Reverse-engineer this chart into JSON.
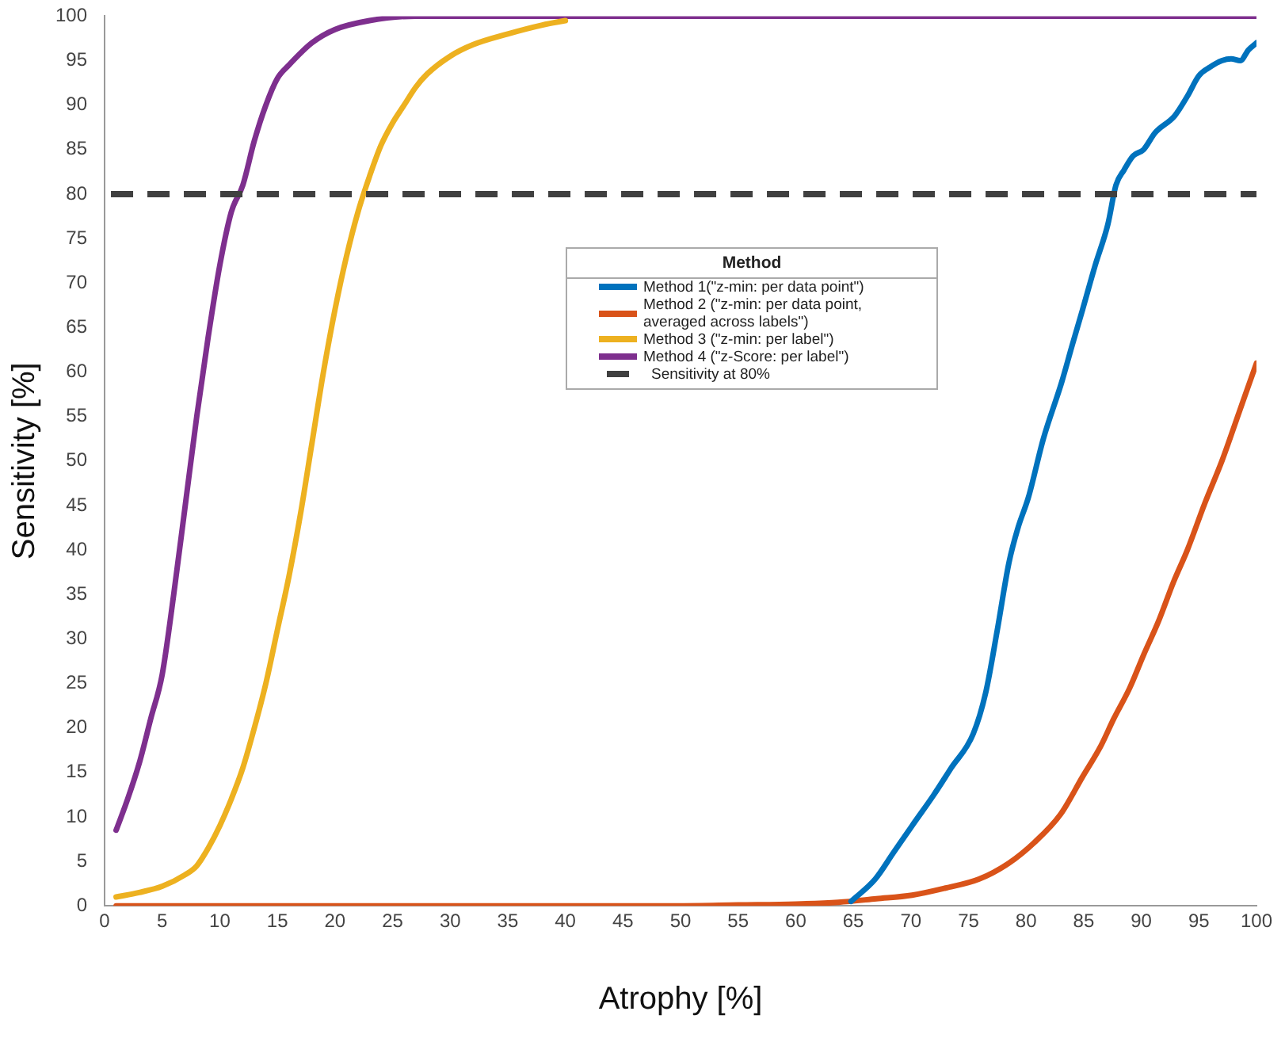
{
  "chart_data": {
    "type": "line",
    "xlabel": "Atrophy [%]",
    "ylabel": "Sensitivity [%]",
    "legend_title": "Method",
    "xlim": [
      0,
      100
    ],
    "ylim": [
      0,
      100
    ],
    "xticks": [
      0,
      5,
      10,
      15,
      20,
      25,
      30,
      35,
      40,
      45,
      50,
      55,
      60,
      65,
      70,
      75,
      80,
      85,
      90,
      95,
      100
    ],
    "yticks": [
      0,
      5,
      10,
      15,
      20,
      25,
      30,
      35,
      40,
      45,
      50,
      55,
      60,
      65,
      70,
      75,
      80,
      85,
      90,
      95,
      100
    ],
    "grid": false,
    "legend": "center",
    "marker": "none",
    "line_style": "solid",
    "series": [
      {
        "name": "Method 1(\"z-min: per data point\")",
        "color": "#0072bd",
        "x": [
          64.8,
          66.9,
          68.5,
          70.1,
          72,
          73.5,
          75.4,
          76.5,
          77.5,
          78.5,
          79.3,
          80.2,
          81.5,
          83.1,
          84,
          84.9,
          86,
          87.1,
          87.8,
          88.5,
          89.3,
          90.2,
          91.2,
          92.9,
          94,
          95,
          96,
          97,
          97.8,
          98.6,
          99.3,
          100
        ],
        "values": [
          0.5,
          3,
          6,
          9,
          12.5,
          15.5,
          19.3,
          24,
          31,
          38.5,
          42.5,
          45.9,
          52.5,
          58.9,
          63,
          67,
          72,
          76.6,
          81,
          82.7,
          84.3,
          85,
          86.9,
          88.8,
          91,
          93.3,
          94.3,
          95,
          95.2,
          95,
          96.2,
          97
        ]
      },
      {
        "name": "Method 2 (\"z-min: per data point, averaged across labels\")",
        "color": "#d95319",
        "x": [
          1,
          10,
          20,
          30,
          40,
          50,
          55,
          60,
          63.7,
          67,
          70.1,
          73,
          75.9,
          78.5,
          80.7,
          83,
          84.9,
          86.5,
          87.6,
          89,
          90.2,
          91.5,
          92.8,
          94,
          95.5,
          97,
          98.5,
          100
        ],
        "values": [
          0,
          0,
          0,
          0,
          0,
          0,
          0.1,
          0.2,
          0.4,
          0.8,
          1.2,
          2,
          3,
          4.8,
          7.1,
          10.3,
          14.5,
          18,
          21,
          24.5,
          28.2,
          32,
          36.4,
          40,
          45.2,
          50,
          55.5,
          61
        ]
      },
      {
        "name": "Method 3 (\"z-min: per label\")",
        "color": "#edb120",
        "x": [
          1,
          3,
          5,
          7,
          8,
          9,
          10,
          11,
          12,
          13,
          14,
          15,
          16,
          17,
          18,
          19,
          20,
          21,
          22,
          23,
          24,
          25,
          26,
          27,
          28,
          30,
          32,
          35,
          38,
          40
        ],
        "values": [
          1,
          1.5,
          2.2,
          3.5,
          4.5,
          6.5,
          9,
          12,
          15.5,
          20,
          25,
          31,
          37,
          44,
          52,
          60,
          67,
          73,
          78,
          82,
          85.5,
          88,
          90,
          92,
          93.5,
          95.5,
          96.8,
          98,
          99,
          99.5
        ]
      },
      {
        "name": "Method 4 (\"z-Score: per label\")",
        "color": "#7e2f8e",
        "x": [
          1,
          2,
          3,
          4,
          5,
          6,
          7,
          8,
          9,
          10,
          11,
          12,
          13,
          14,
          15,
          16,
          18,
          20,
          23,
          27,
          30,
          40,
          50,
          60,
          70,
          80,
          90,
          100
        ],
        "values": [
          8.5,
          12,
          16,
          21,
          26,
          35,
          45,
          55,
          64,
          72,
          78,
          81,
          86,
          90,
          93,
          94.5,
          97,
          98.5,
          99.5,
          100,
          100,
          100,
          100,
          100,
          100,
          100,
          100,
          100
        ]
      }
    ],
    "ref_lines": [
      {
        "axis": "y",
        "value": 80,
        "label": "Sensitivity at 80%",
        "color": "#404040",
        "line_style": "dashed"
      }
    ]
  }
}
